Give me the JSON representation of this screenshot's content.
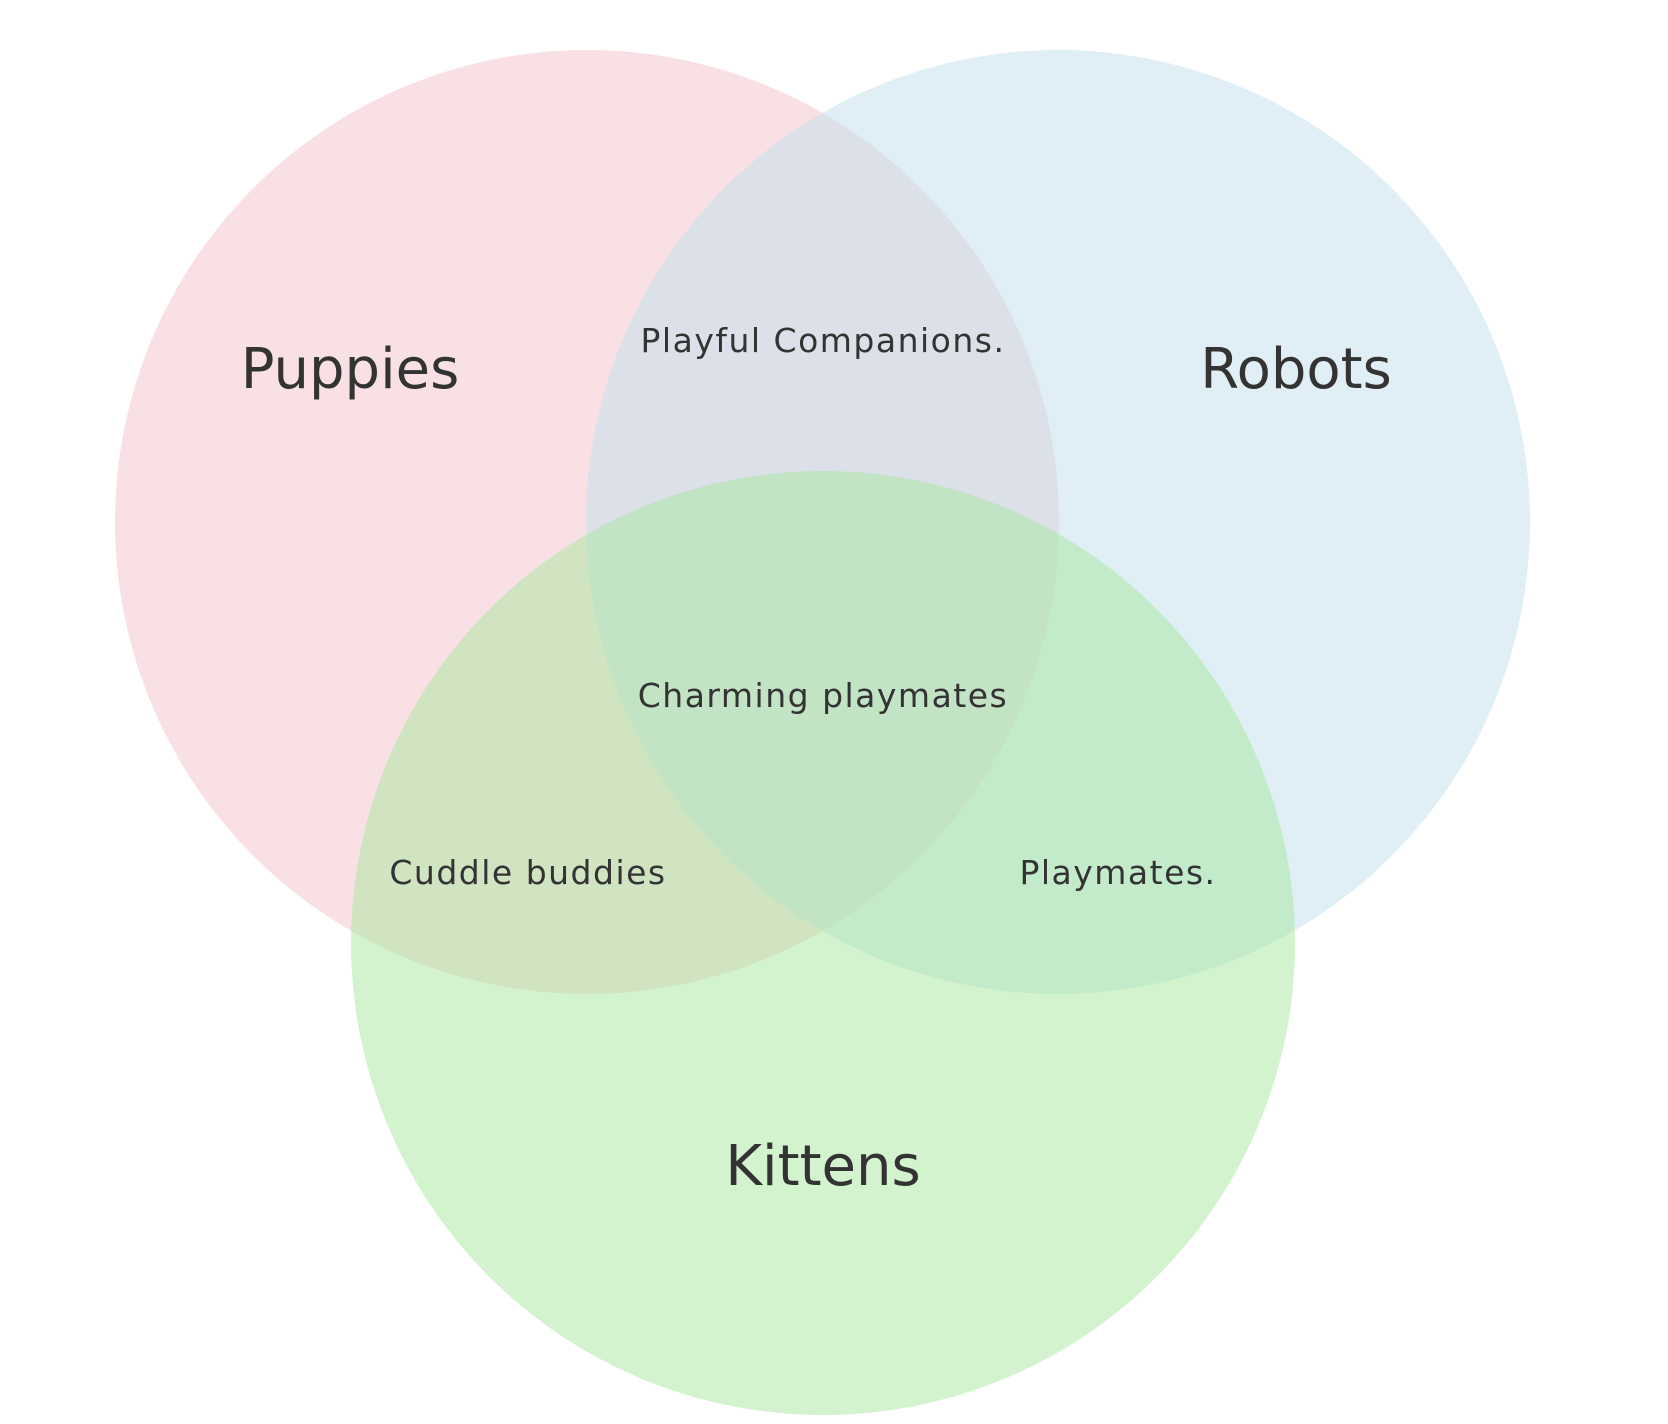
{
  "venn": {
    "sets": {
      "puppies": {
        "label": "Puppies",
        "color": "#f4c2cb"
      },
      "robots": {
        "label": "Robots",
        "color": "#bfdfec"
      },
      "kittens": {
        "label": "Kittens",
        "color": "#a8e8a0"
      }
    },
    "regions": {
      "puppies_robots": "Playful Companions.",
      "all_three": "Charming playmates",
      "puppies_kittens": "Cuddle buddies",
      "robots_kittens": "Playmates."
    },
    "text_color": "#333333",
    "background": "#ffffff"
  }
}
